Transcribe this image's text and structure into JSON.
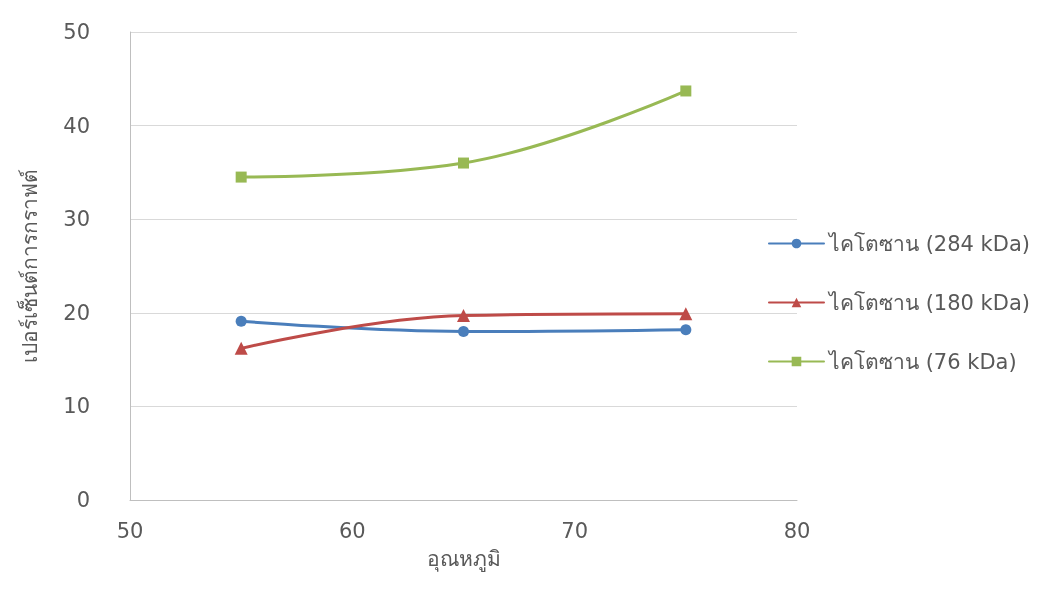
{
  "chart_data": {
    "type": "line",
    "xlabel": "อุณหภูมิ",
    "ylabel": "เปอร์เซ็นต์การกราฟต์",
    "x": [
      55,
      65,
      75
    ],
    "xlim": [
      50,
      80
    ],
    "xticks": [
      50,
      60,
      70,
      80
    ],
    "ylim": [
      0,
      50
    ],
    "yticks": [
      0,
      10,
      20,
      30,
      40,
      50
    ],
    "grid": "y",
    "legend": "right",
    "line_style": "solid",
    "series": [
      {
        "name": "ไคโตซาน (284 kDa)",
        "color": "#4a7ebb",
        "marker": "circle",
        "values": [
          19.1,
          18.0,
          18.2
        ]
      },
      {
        "name": "ไคโตซาน (180 kDa)",
        "color": "#be4b48",
        "marker": "triangle",
        "values": [
          16.2,
          19.7,
          19.9
        ]
      },
      {
        "name": "ไคโตซาน (76 kDa)",
        "color": "#98b954",
        "marker": "square",
        "values": [
          34.5,
          36.0,
          43.7
        ]
      }
    ]
  }
}
